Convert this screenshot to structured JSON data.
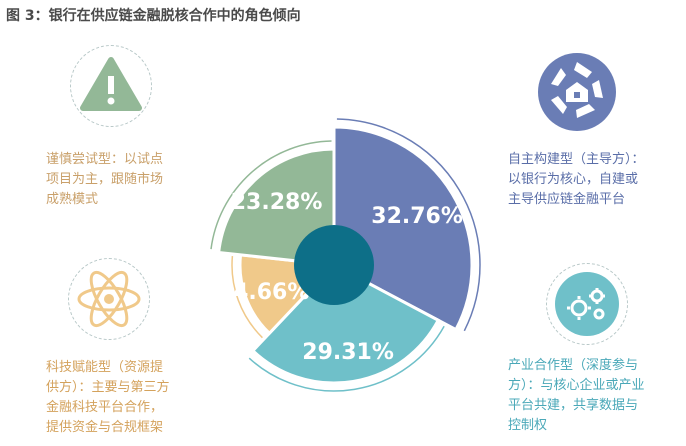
{
  "title": "图 3：银行在供应链金融脱核合作中的角色倾向",
  "chart_data": {
    "type": "pie",
    "slices": [
      {
        "label": "32.76%",
        "value": 32.76,
        "color": "#6a7db5"
      },
      {
        "label": "29.31%",
        "value": 29.31,
        "color": "#6fc0c9"
      },
      {
        "label": "14.66%",
        "value": 14.66,
        "color": "#f0c98a"
      },
      {
        "label": "23.28%",
        "value": 23.28,
        "color": "#93b897"
      }
    ],
    "center_color": "#0d6f88"
  },
  "annotations": {
    "green": "谨慎尝试型：以试点\n项目为主，跟随市场\n成熟模式",
    "blue": "自主构建型（主导方）：\n以银行为核心，自建或\n主导供应链金融平台",
    "orange": "科技赋能型（资源提\n供方）：主要与第三方\n金融科技平台合作，\n提供资金与合规框架",
    "teal": "产业合作型（深度参与\n方）：与核心企业或产业\n平台共建，共享数据与\n控制权"
  },
  "icons": {
    "warning": "warning-icon",
    "house": "house-shutter-icon",
    "atom": "atom-icon",
    "gears": "gears-icon"
  },
  "colors": {
    "warning_bg": "#93b897",
    "house_bg": "#6a7db5",
    "atom": "#f0c98a",
    "gears_bg": "#6fc0c9"
  }
}
